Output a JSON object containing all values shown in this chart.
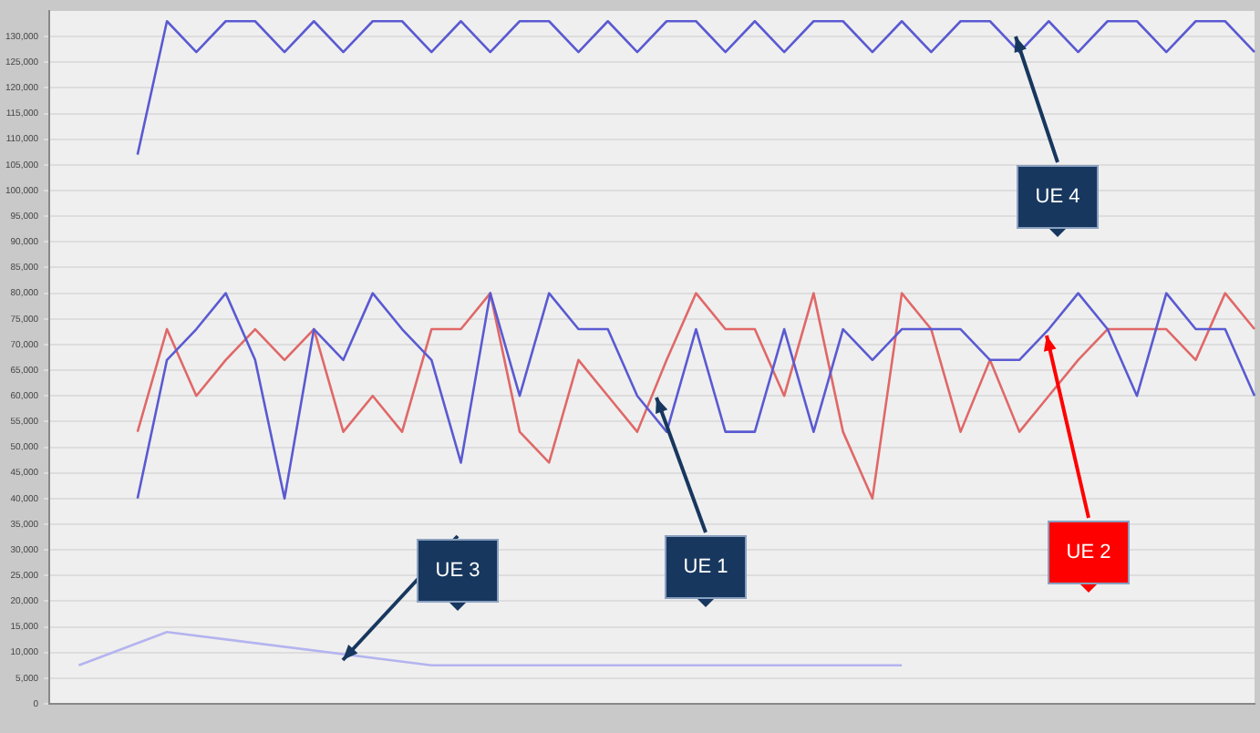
{
  "chart_data": {
    "type": "line",
    "categories": [
      null,
      null,
      null,
      null,
      null,
      null,
      null,
      null,
      null,
      null,
      null,
      null,
      null,
      null,
      null,
      null,
      null,
      null,
      null,
      null,
      null,
      null,
      null,
      null,
      null,
      null,
      null,
      null,
      null,
      null,
      null,
      null,
      null,
      null,
      null,
      null,
      null,
      null,
      null,
      null,
      null,
      null
    ],
    "series": [
      {
        "name": "UE 1",
        "color": "#5a5ad2",
        "values": [
          null,
          null,
          null,
          40000,
          67000,
          73000,
          80000,
          67000,
          40000,
          73000,
          67000,
          80000,
          73000,
          67000,
          47000,
          80000,
          60000,
          80000,
          73000,
          73000,
          60000,
          53000,
          73000,
          53000,
          53000,
          73000,
          53000,
          73000,
          67000,
          73000,
          73000,
          73000,
          67000,
          67000,
          73000,
          80000,
          73000,
          60000,
          80000,
          73000,
          73000,
          60000
        ]
      },
      {
        "name": "UE 2",
        "color": "#e06868",
        "values": [
          null,
          null,
          null,
          53000,
          73000,
          60000,
          67000,
          73000,
          67000,
          73000,
          53000,
          60000,
          53000,
          73000,
          73000,
          80000,
          53000,
          47000,
          67000,
          60000,
          53000,
          67000,
          80000,
          73000,
          73000,
          60000,
          80000,
          53000,
          40000,
          80000,
          73000,
          53000,
          67000,
          53000,
          60000,
          67000,
          73000,
          73000,
          73000,
          67000,
          80000,
          73000
        ]
      },
      {
        "name": "UE 3",
        "color": "#b4b4f0",
        "values": [
          null,
          7500,
          null,
          null,
          14000,
          null,
          null,
          null,
          null,
          null,
          null,
          null,
          null,
          7500,
          null,
          null,
          null,
          null,
          null,
          null,
          null,
          null,
          null,
          null,
          null,
          null,
          null,
          null,
          null,
          7500,
          null,
          null,
          null,
          null,
          null,
          null,
          null,
          null,
          null,
          null,
          null,
          null
        ]
      },
      {
        "name": "UE 4",
        "color": "#5a5ad2",
        "values": [
          null,
          null,
          null,
          107000,
          133000,
          127000,
          133000,
          133000,
          127000,
          133000,
          127000,
          133000,
          133000,
          127000,
          133000,
          127000,
          133000,
          133000,
          127000,
          133000,
          127000,
          133000,
          133000,
          127000,
          133000,
          127000,
          133000,
          133000,
          127000,
          133000,
          127000,
          133000,
          133000,
          127000,
          133000,
          127000,
          133000,
          133000,
          127000,
          133000,
          133000,
          127000
        ]
      }
    ],
    "ylim": [
      0,
      135000
    ],
    "yticks": [
      0,
      {
        "value": 5000,
        "label": "5,000"
      },
      {
        "value": 10000,
        "label": "10,000"
      },
      {
        "value": 15000,
        "label": "15,000"
      },
      {
        "value": 20000,
        "label": "20,000"
      },
      {
        "value": 25000,
        "label": "25,000"
      },
      {
        "value": 30000,
        "label": "30,000"
      },
      {
        "value": 35000,
        "label": "35,000"
      },
      {
        "value": 40000,
        "label": "40,000"
      },
      {
        "value": 45000,
        "label": "45,000"
      },
      {
        "value": 50000,
        "label": "50,000"
      },
      {
        "value": 55000,
        "label": "55,000"
      },
      {
        "value": 60000,
        "label": "60,000"
      },
      {
        "value": 65000,
        "label": "65,000"
      },
      {
        "value": 70000,
        "label": "70,000"
      },
      {
        "value": 75000,
        "label": "75,000"
      },
      {
        "value": 80000,
        "label": "80,000"
      },
      {
        "value": 85000,
        "label": "85,000"
      },
      {
        "value": 90000,
        "label": "90,000"
      },
      {
        "value": 95000,
        "label": "95,000"
      },
      {
        "value": 100000,
        "label": "100,000"
      },
      {
        "value": 105000,
        "label": "105,000"
      },
      {
        "value": 110000,
        "label": "110,000"
      },
      {
        "value": 115000,
        "label": "115,000"
      },
      {
        "value": 120000,
        "label": "120,000"
      },
      {
        "value": 125000,
        "label": "125,000"
      },
      {
        "value": 130000,
        "label": "130,000"
      }
    ],
    "grid": "y",
    "legend": false,
    "marker": "none",
    "line_style": "solid"
  }
}
